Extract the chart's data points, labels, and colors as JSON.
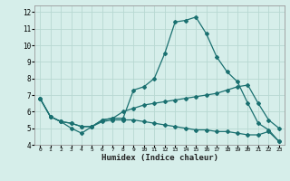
{
  "title": "",
  "xlabel": "Humidex (Indice chaleur)",
  "ylabel": "",
  "background_color": "#d6eeea",
  "grid_color": "#b8d8d2",
  "line_color": "#1a7070",
  "xlim": [
    -0.5,
    23.5
  ],
  "ylim": [
    4,
    12.4
  ],
  "yticks": [
    4,
    5,
    6,
    7,
    8,
    9,
    10,
    11,
    12
  ],
  "xticks": [
    0,
    1,
    2,
    3,
    4,
    5,
    6,
    7,
    8,
    9,
    10,
    11,
    12,
    13,
    14,
    15,
    16,
    17,
    18,
    19,
    20,
    21,
    22,
    23
  ],
  "series": [
    {
      "x": [
        0,
        1,
        2,
        3,
        4,
        5,
        6,
        7,
        8,
        9,
        10,
        11,
        12,
        13,
        14,
        15,
        16,
        17,
        18,
        19,
        20,
        21,
        22,
        23
      ],
      "y": [
        6.8,
        5.7,
        5.4,
        5.0,
        4.7,
        5.1,
        5.5,
        5.6,
        5.6,
        7.3,
        7.5,
        8.0,
        9.5,
        11.4,
        11.5,
        11.7,
        10.7,
        9.3,
        8.4,
        7.8,
        6.5,
        5.3,
        4.9,
        4.2
      ]
    },
    {
      "x": [
        0,
        1,
        2,
        3,
        4,
        5,
        6,
        7,
        8,
        9,
        10,
        11,
        12,
        13,
        14,
        15,
        16,
        17,
        18,
        19,
        20,
        21,
        22,
        23
      ],
      "y": [
        6.8,
        5.7,
        5.4,
        5.3,
        5.1,
        5.1,
        5.5,
        5.6,
        6.0,
        6.2,
        6.4,
        6.5,
        6.6,
        6.7,
        6.8,
        6.9,
        7.0,
        7.1,
        7.3,
        7.5,
        7.6,
        6.5,
        5.5,
        5.0
      ]
    },
    {
      "x": [
        0,
        1,
        2,
        3,
        4,
        5,
        6,
        7,
        8,
        9,
        10,
        11,
        12,
        13,
        14,
        15,
        16,
        17,
        18,
        19,
        20,
        21,
        22,
        23
      ],
      "y": [
        6.8,
        5.7,
        5.4,
        5.3,
        5.1,
        5.1,
        5.4,
        5.5,
        5.5,
        5.5,
        5.4,
        5.3,
        5.2,
        5.1,
        5.0,
        4.9,
        4.9,
        4.8,
        4.8,
        4.7,
        4.6,
        4.6,
        4.8,
        4.2
      ]
    }
  ]
}
